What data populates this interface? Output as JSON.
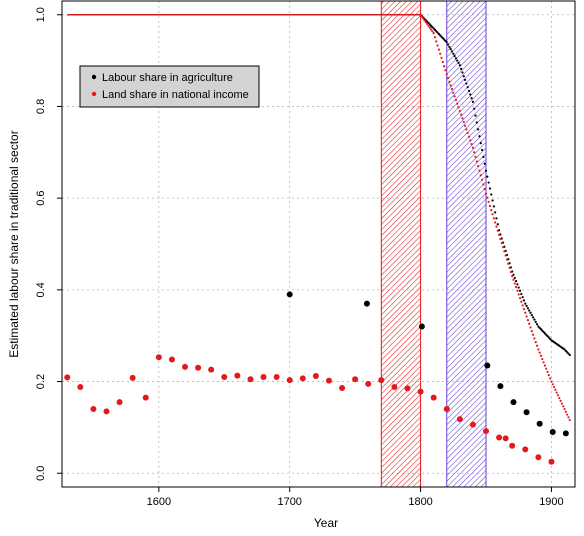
{
  "chart_data": {
    "type": "scatter",
    "title": "",
    "xlabel": "Year",
    "ylabel": "Estimated labour share in traditional sector",
    "xlim": [
      1526,
      1918
    ],
    "ylim": [
      -0.03,
      1.03
    ],
    "xticks": [
      1600,
      1700,
      1800,
      1900
    ],
    "yticks": [
      0.0,
      0.2,
      0.4,
      0.6,
      0.8,
      1.0
    ],
    "ytick_labels": [
      "0.0",
      "0.2",
      "0.4",
      "0.6",
      "0.8",
      "1.0"
    ],
    "grid": true,
    "legend_position": "top-left",
    "shaded_periods": [
      {
        "x_start": 1770,
        "x_end": 1800,
        "color": "#e31a1c",
        "pattern": "diagonal-hatch"
      },
      {
        "x_start": 1820,
        "x_end": 1850,
        "color": "#6a3fd8",
        "pattern": "diagonal-hatch"
      }
    ],
    "series": [
      {
        "name": "Labour share in agriculture",
        "color": "#000000",
        "kind": "points",
        "x": [
          1700,
          1759,
          1801,
          1851,
          1861,
          1871,
          1881,
          1891,
          1901,
          1911
        ],
        "y": [
          0.39,
          0.37,
          0.32,
          0.235,
          0.19,
          0.155,
          0.133,
          0.108,
          0.09,
          0.087
        ]
      },
      {
        "name": "Land share in national income",
        "color": "#e31a1c",
        "kind": "points",
        "x": [
          1530,
          1540,
          1550,
          1560,
          1570,
          1580,
          1590,
          1600,
          1610,
          1620,
          1630,
          1640,
          1650,
          1660,
          1670,
          1680,
          1690,
          1700,
          1710,
          1720,
          1730,
          1740,
          1750,
          1760,
          1770,
          1780,
          1790,
          1800,
          1810,
          1820,
          1830,
          1840,
          1850,
          1860,
          1865,
          1870,
          1880,
          1890,
          1900
        ],
        "y": [
          0.209,
          0.188,
          0.14,
          0.135,
          0.155,
          0.208,
          0.165,
          0.253,
          0.248,
          0.232,
          0.23,
          0.226,
          0.21,
          0.213,
          0.205,
          0.21,
          0.21,
          0.203,
          0.207,
          0.212,
          0.202,
          0.186,
          0.205,
          0.195,
          0.203,
          0.188,
          0.185,
          0.178,
          0.165,
          0.14,
          0.118,
          0.106,
          0.092,
          0.078,
          0.076,
          0.06,
          0.052,
          0.035,
          0.025
        ]
      },
      {
        "name": "",
        "color": "#000000",
        "kind": "dotted-curve",
        "x": [
          1530,
          1800,
          1810,
          1820,
          1830,
          1840,
          1850,
          1860,
          1870,
          1880,
          1890,
          1900,
          1910,
          1915
        ],
        "y": [
          1.0,
          1.0,
          0.97,
          0.94,
          0.89,
          0.81,
          0.66,
          0.53,
          0.44,
          0.37,
          0.32,
          0.29,
          0.27,
          0.255
        ]
      },
      {
        "name": "",
        "color": "#e31a1c",
        "kind": "dotted-curve",
        "x": [
          1530,
          1800,
          1810,
          1820,
          1830,
          1840,
          1850,
          1860,
          1870,
          1880,
          1890,
          1900,
          1910,
          1915
        ],
        "y": [
          1.0,
          1.0,
          0.96,
          0.87,
          0.79,
          0.71,
          0.61,
          0.52,
          0.43,
          0.35,
          0.27,
          0.2,
          0.14,
          0.11
        ]
      }
    ]
  }
}
